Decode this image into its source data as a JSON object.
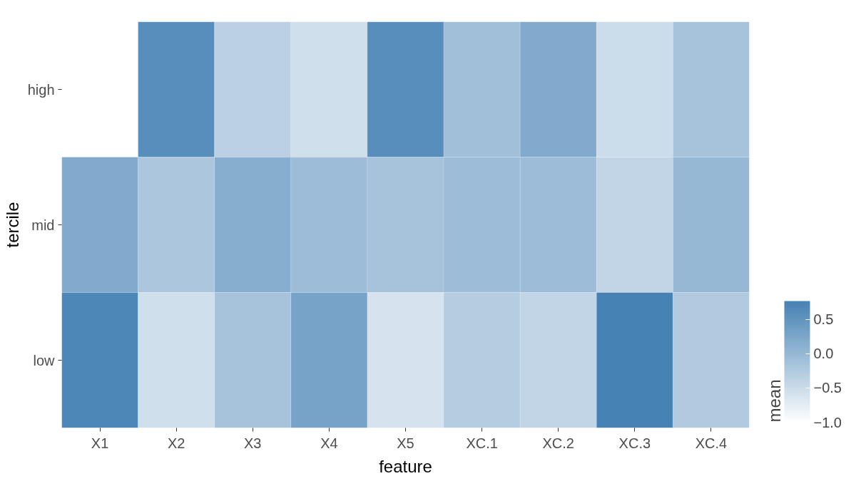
{
  "chart_data": {
    "type": "heatmap",
    "xlabel": "feature",
    "ylabel": "tercile",
    "clabel": "mean",
    "categories": [
      "X1",
      "X2",
      "X3",
      "X4",
      "X5",
      "XC.1",
      "XC.2",
      "XC.3",
      "XC.4"
    ],
    "y_categories": [
      "high",
      "mid",
      "low"
    ],
    "cells": [
      [
        null,
        0.6,
        -0.35,
        -0.55,
        0.6,
        -0.1,
        0.2,
        -0.5,
        -0.15
      ],
      [
        0.2,
        -0.2,
        0.15,
        -0.05,
        -0.15,
        -0.05,
        -0.05,
        -0.4,
        0.0
      ],
      [
        0.7,
        -0.55,
        -0.15,
        0.3,
        -0.6,
        -0.3,
        -0.4,
        0.77,
        -0.25
      ]
    ],
    "clim": [
      -1.0,
      0.77
    ],
    "cticks": [
      {
        "value": -1.0,
        "label": "−1.0"
      },
      {
        "value": -0.5,
        "label": "−0.5"
      },
      {
        "value": 0.0,
        "label": "0.0"
      },
      {
        "value": 0.5,
        "label": "0.5"
      }
    ],
    "grid": false
  }
}
